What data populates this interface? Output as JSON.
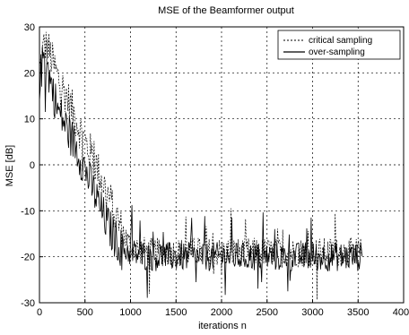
{
  "chart_data": {
    "type": "line",
    "title": "MSE of the Beamformer output",
    "xlabel": "iterations n",
    "ylabel": "MSE [dB]",
    "xlim": [
      0,
      4000
    ],
    "ylim": [
      -30,
      30
    ],
    "x_ticks": [
      "0",
      "500",
      "1000",
      "1500",
      "2000",
      "2500",
      "3000",
      "3500",
      "4000"
    ],
    "y_ticks": [
      "30",
      "20",
      "10",
      "0",
      "-10",
      "-20",
      "-30"
    ],
    "grid": true,
    "legend_position": "top-right",
    "series": [
      {
        "name": "critical sampling",
        "style": "dotted",
        "x": [
          0,
          50,
          100,
          150,
          200,
          300,
          400,
          500,
          600,
          700,
          800,
          900,
          1000,
          1200,
          1400,
          1600,
          1800,
          2000,
          2200,
          2400,
          2600,
          2800,
          3000,
          3200,
          3400,
          3550
        ],
        "y": [
          20,
          26,
          25,
          22,
          19,
          15,
          10,
          5,
          1,
          -4,
          -9,
          -14,
          -18,
          -19,
          -19,
          -19,
          -19,
          -19,
          -19,
          -19,
          -19,
          -19,
          -19,
          -19,
          -19,
          -19
        ]
      },
      {
        "name": "over-sampling",
        "style": "solid",
        "x": [
          0,
          50,
          100,
          150,
          200,
          300,
          400,
          500,
          600,
          700,
          800,
          900,
          1000,
          1200,
          1400,
          1600,
          1800,
          2000,
          2200,
          2400,
          2600,
          2800,
          3000,
          3200,
          3400,
          3550
        ],
        "y": [
          18,
          24,
          20,
          16,
          12,
          8,
          4,
          -1,
          -6,
          -11,
          -15,
          -18,
          -19,
          -20,
          -20,
          -20,
          -20,
          -20,
          -20,
          -20,
          -20,
          -20,
          -20,
          -20,
          -20,
          -20
        ]
      }
    ]
  }
}
